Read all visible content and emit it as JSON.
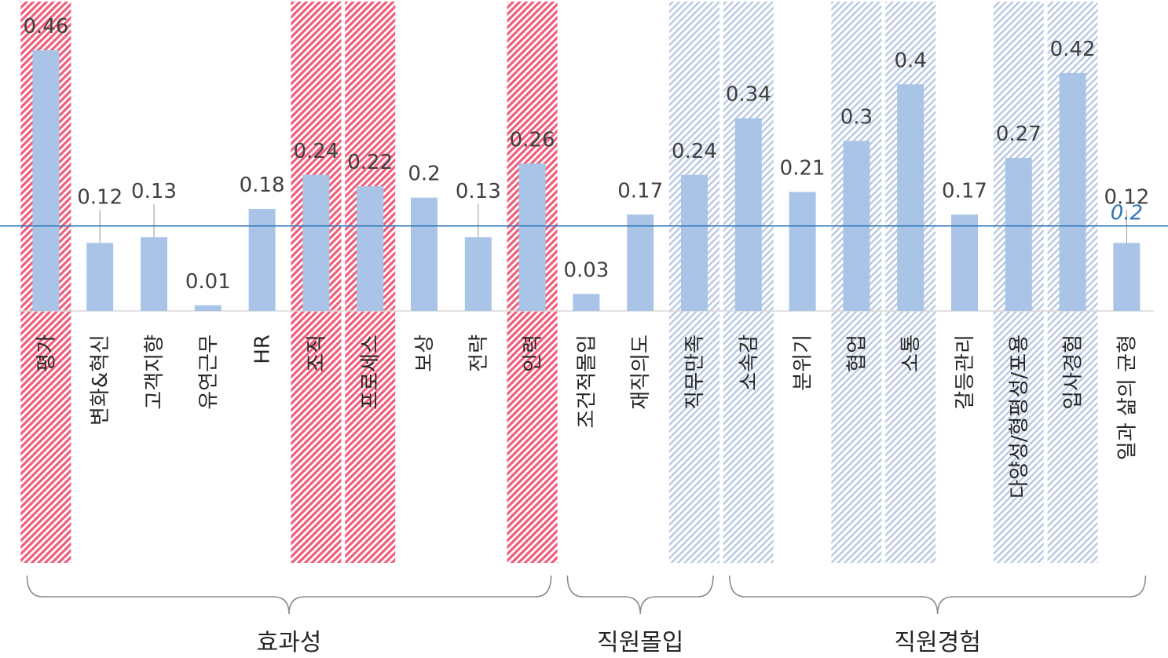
{
  "chart_data": {
    "type": "bar",
    "categories": [
      "평가",
      "변화&혁신",
      "고객지향",
      "유연근무",
      "HR",
      "조직",
      "프로세스",
      "보상",
      "전략",
      "인력",
      "조건적몰입",
      "재직의도",
      "직무만족",
      "소속감",
      "분위기",
      "협업",
      "소통",
      "갈등관리",
      "다양성/형평성/포용",
      "입사경험",
      "일과 삶의 균형"
    ],
    "values": [
      0.46,
      0.12,
      0.13,
      0.01,
      0.18,
      0.24,
      0.22,
      0.2,
      0.13,
      0.26,
      0.03,
      0.17,
      0.24,
      0.34,
      0.21,
      0.3,
      0.4,
      0.17,
      0.27,
      0.42,
      0.12
    ],
    "value_labels": [
      "0.46",
      "0.12",
      "0.13",
      "0.01",
      "0.18",
      "0.24",
      "0.22",
      "0.2",
      "0.13",
      "0.26",
      "0.03",
      "0.17",
      "0.24",
      "0.34",
      "0.21",
      "0.3",
      "0.4",
      "0.17",
      "0.27",
      "0.42",
      "0.12"
    ],
    "highlight": [
      "red",
      "none",
      "none",
      "none",
      "none",
      "red",
      "red",
      "none",
      "none",
      "red",
      "none",
      "none",
      "blue",
      "blue",
      "none",
      "blue",
      "blue",
      "none",
      "blue",
      "blue",
      "none"
    ],
    "ylim": [
      0,
      0.46
    ],
    "reference_line": {
      "value": 0.15,
      "label": "0.2"
    },
    "groups": [
      {
        "label": "효과성",
        "start": 0,
        "end": 9
      },
      {
        "label": "직원몰입",
        "start": 10,
        "end": 12
      },
      {
        "label": "직원경험",
        "start": 13,
        "end": 20
      }
    ],
    "title": "",
    "xlabel": "",
    "ylabel": "",
    "grid": false,
    "colors": {
      "bar": "#a9c4e6",
      "highlight_red": "#ef5d7a",
      "highlight_blue": "#b8c8e2",
      "reference_line": "#2e75b6",
      "brace": "#8c8c8c"
    }
  }
}
